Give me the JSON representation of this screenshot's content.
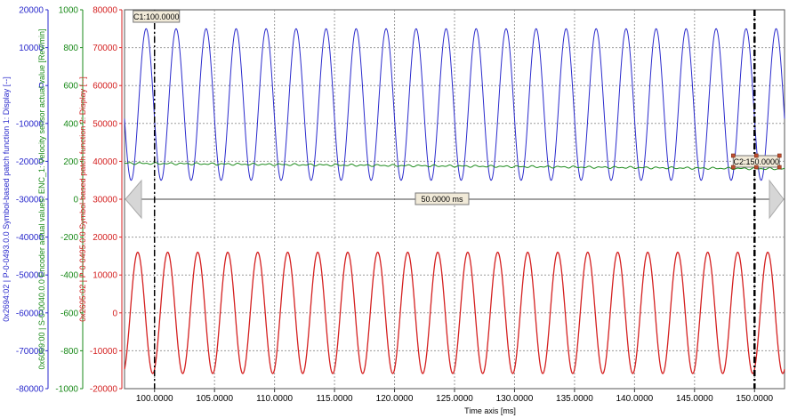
{
  "chart_data": {
    "type": "line",
    "x": {
      "label": "Time axis [ms]",
      "range": [
        97.5,
        152.5
      ],
      "ticks": [
        100,
        105,
        110,
        115,
        120,
        125,
        130,
        135,
        140,
        145,
        150
      ],
      "tick_labels": [
        "100.0000",
        "105.0000",
        "110.0000",
        "115.0000",
        "120.0000",
        "125.0000",
        "130.0000",
        "135.0000",
        "140.0000",
        "145.0000",
        "150.0000"
      ]
    },
    "y_axes": [
      {
        "id": "blue",
        "color": "#2a2acc",
        "label": "0x2694:02 | P-0-0493.0.0 Symbol-based patch function 1: Display [--]",
        "range": [
          -80000,
          20000
        ],
        "ticks": [
          20000,
          10000,
          0,
          -10000,
          -20000,
          -30000,
          -40000,
          -50000,
          -60000,
          -70000,
          -80000
        ],
        "tick_labels": [
          "20000",
          "10000",
          "0",
          "-10000",
          "-20000",
          "-30000",
          "-40000",
          "-50000",
          "-60000",
          "-70000",
          "-80000"
        ]
      },
      {
        "id": "green",
        "color": "#1a8a1a",
        "label": "0x6069:00 | S-0-0040.0.0 Encoder actual values: ENC_1: Velocity sensor actual value [Rev/min]",
        "range": [
          -1000,
          1000
        ],
        "ticks": [
          1000,
          800,
          600,
          400,
          200,
          0,
          -200,
          -400,
          -600,
          -800,
          -1000
        ],
        "tick_labels": [
          "1000",
          "800",
          "600",
          "400",
          "200",
          "0",
          "-200",
          "-400",
          "-600",
          "-800",
          "-1000"
        ]
      },
      {
        "id": "red",
        "color": "#d42020",
        "label": "0x2695:02 | P-0-0495.0.0 Symbol-based patch function 2: Display [--]",
        "range": [
          -20000,
          80000
        ],
        "ticks": [
          80000,
          70000,
          60000,
          50000,
          40000,
          30000,
          20000,
          10000,
          0,
          -10000,
          -20000
        ],
        "tick_labels": [
          "80000",
          "70000",
          "60000",
          "50000",
          "40000",
          "30000",
          "20000",
          "10000",
          "0",
          "-10000",
          "-20000"
        ]
      }
    ],
    "series": [
      {
        "axis": "red",
        "color": "#2a2acc",
        "kind": "sine",
        "center": 55000,
        "amplitude": 20000,
        "period_ms": 2.5,
        "peak_at_ms": 99.3
      },
      {
        "axis": "red",
        "color": "#1a8a1a",
        "kind": "drift",
        "start": 39500,
        "end": 38000
      },
      {
        "axis": "red",
        "color": "#d42020",
        "kind": "sine",
        "center": 0,
        "amplitude": 16000,
        "period_ms": 2.5,
        "peak_at_ms": 98.6
      }
    ],
    "cursors": [
      {
        "name": "C1",
        "x": 100.0,
        "label": "C1:100.0000"
      },
      {
        "name": "C2",
        "x": 150.0,
        "label": "C2:150.0000"
      }
    ],
    "delta_label": "50.0000 ms",
    "grid": true,
    "colors": {
      "blue": "#2a2acc",
      "green": "#1a8a1a",
      "red": "#d42020",
      "grid": "#9a9a9a"
    }
  }
}
